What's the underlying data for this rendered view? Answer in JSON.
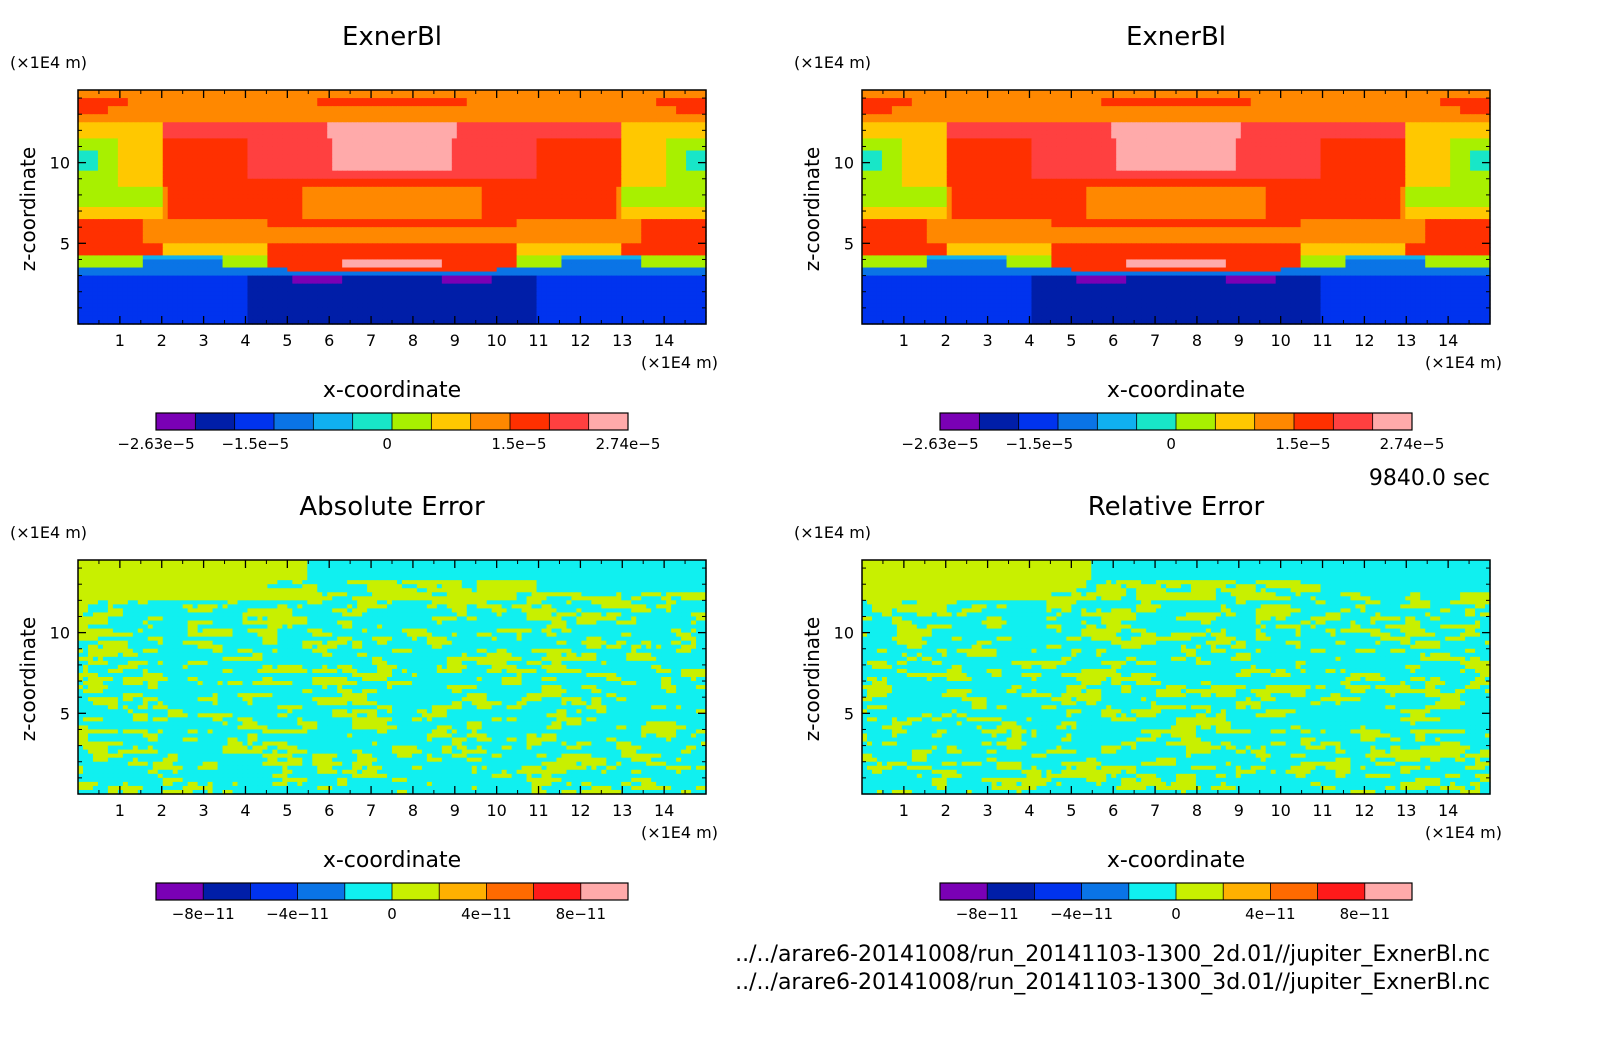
{
  "time_label": "9840.0 sec",
  "files": [
    "../../arare6-20141008/run_20141103-1300_2d.01//jupiter_ExnerBl.nc",
    "../../arare6-20141008/run_20141103-1300_3d.01//jupiter_ExnerBl.nc"
  ],
  "chart_data": [
    {
      "type": "heatmap",
      "title": "ExnerBl",
      "xlabel": "x-coordinate",
      "ylabel": "z-coordinate",
      "x_unit": "(×1E4 m)",
      "y_unit": "(×1E4 m)",
      "xlim": [
        0,
        15
      ],
      "ylim": [
        0,
        14.5
      ],
      "x_ticks": [
        1,
        2,
        3,
        4,
        5,
        6,
        7,
        8,
        9,
        10,
        11,
        12,
        13,
        14
      ],
      "y_ticks": [
        5,
        10
      ],
      "colorbar": {
        "colors": [
          "#7a00b5",
          "#001ea8",
          "#0033ee",
          "#0a74e6",
          "#10b0f0",
          "#18e6c8",
          "#a8f000",
          "#ffc800",
          "#ff8800",
          "#ff3000",
          "#ff4040",
          "#ffaaaa"
        ],
        "tick_labels": [
          "-2.63e-5",
          "-1.5e-5",
          "0",
          "1.5e-5",
          "2.74e-5"
        ],
        "tick_values": [
          -2.63e-05,
          -1.5e-05,
          0,
          1.5e-05,
          2.74e-05
        ],
        "range": [
          -2.63e-05,
          2.74e-05
        ]
      }
    },
    {
      "type": "heatmap",
      "title": "ExnerBl",
      "xlabel": "x-coordinate",
      "ylabel": "z-coordinate",
      "x_unit": "(×1E4 m)",
      "y_unit": "(×1E4 m)",
      "xlim": [
        0,
        15
      ],
      "ylim": [
        0,
        14.5
      ],
      "x_ticks": [
        1,
        2,
        3,
        4,
        5,
        6,
        7,
        8,
        9,
        10,
        11,
        12,
        13,
        14
      ],
      "y_ticks": [
        5,
        10
      ],
      "colorbar": {
        "colors": [
          "#7a00b5",
          "#001ea8",
          "#0033ee",
          "#0a74e6",
          "#10b0f0",
          "#18e6c8",
          "#a8f000",
          "#ffc800",
          "#ff8800",
          "#ff3000",
          "#ff4040",
          "#ffaaaa"
        ],
        "tick_labels": [
          "-2.63e-5",
          "-1.5e-5",
          "0",
          "1.5e-5",
          "2.74e-5"
        ],
        "tick_values": [
          -2.63e-05,
          -1.5e-05,
          0,
          1.5e-05,
          2.74e-05
        ],
        "range": [
          -2.63e-05,
          2.74e-05
        ]
      }
    },
    {
      "type": "heatmap",
      "title": "Absolute Error",
      "xlabel": "x-coordinate",
      "ylabel": "z-coordinate",
      "x_unit": "(×1E4 m)",
      "y_unit": "(×1E4 m)",
      "xlim": [
        0,
        15
      ],
      "ylim": [
        0,
        14.5
      ],
      "x_ticks": [
        1,
        2,
        3,
        4,
        5,
        6,
        7,
        8,
        9,
        10,
        11,
        12,
        13,
        14
      ],
      "y_ticks": [
        5,
        10
      ],
      "colorbar": {
        "colors": [
          "#7a00b5",
          "#001ea8",
          "#0033ee",
          "#0a74e6",
          "#10f0f0",
          "#c8f000",
          "#ffb000",
          "#ff6a00",
          "#ff1a1a",
          "#ffaaaa"
        ],
        "tick_labels": [
          "-8e-11",
          "-4e-11",
          "0",
          "4e-11",
          "8e-11"
        ],
        "tick_values": [
          -8e-11,
          -4e-11,
          0,
          4e-11,
          8e-11
        ],
        "range": [
          -1e-10,
          1e-10
        ]
      }
    },
    {
      "type": "heatmap",
      "title": "Relative Error",
      "xlabel": "x-coordinate",
      "ylabel": "z-coordinate",
      "x_unit": "(×1E4 m)",
      "y_unit": "(×1E4 m)",
      "xlim": [
        0,
        15
      ],
      "ylim": [
        0,
        14.5
      ],
      "x_ticks": [
        1,
        2,
        3,
        4,
        5,
        6,
        7,
        8,
        9,
        10,
        11,
        12,
        13,
        14
      ],
      "y_ticks": [
        5,
        10
      ],
      "colorbar": {
        "colors": [
          "#7a00b5",
          "#001ea8",
          "#0033ee",
          "#0a74e6",
          "#10f0f0",
          "#c8f000",
          "#ffb000",
          "#ff6a00",
          "#ff1a1a",
          "#ffaaaa"
        ],
        "tick_labels": [
          "-8e-11",
          "-4e-11",
          "0",
          "4e-11",
          "8e-11"
        ],
        "tick_values": [
          -8e-11,
          -4e-11,
          0,
          4e-11,
          8e-11
        ],
        "range": [
          -1e-10,
          1e-10
        ]
      }
    }
  ]
}
